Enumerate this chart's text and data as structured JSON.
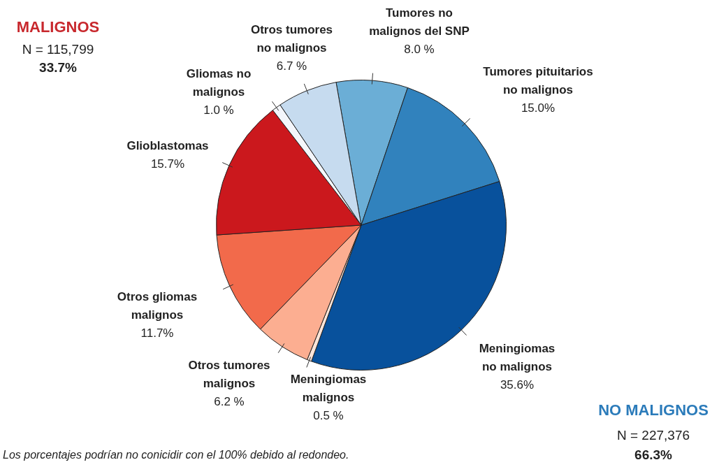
{
  "chart_data": {
    "type": "pie",
    "categories": [
      "Tumores no malignos del SNP",
      "Tumores pituitarios no malignos",
      "Meningiomas no malignos",
      "Meningiomas malignos",
      "Otros tumores malignos",
      "Otros gliomas malignos",
      "Glioblastomas",
      "Gliomas no malignos",
      "Otros tumores no malignos"
    ],
    "values": [
      8.0,
      15.0,
      35.6,
      0.5,
      6.2,
      11.7,
      15.7,
      1.0,
      6.7
    ],
    "value_labels": [
      "8.0 %",
      "15.0%",
      "35.6%",
      "0.5 %",
      "6.2 %",
      "11.7%",
      "15.7%",
      "1.0 %",
      "6.7 %"
    ],
    "colors": [
      "#6baed6",
      "#3182bd",
      "#08519c",
      "#fee5d9",
      "#fcae91",
      "#f26a4b",
      "#cb181d",
      "#f4f6fb",
      "#c6dbef"
    ],
    "annotations": [
      "MALIGNOS",
      "N = 115,799",
      "33.7%",
      "NO MALIGNOS",
      "N = 227,376",
      "66.3%",
      "Los porcentajes podrían no conicidir con el 100% debido al redondeo."
    ]
  }
}
